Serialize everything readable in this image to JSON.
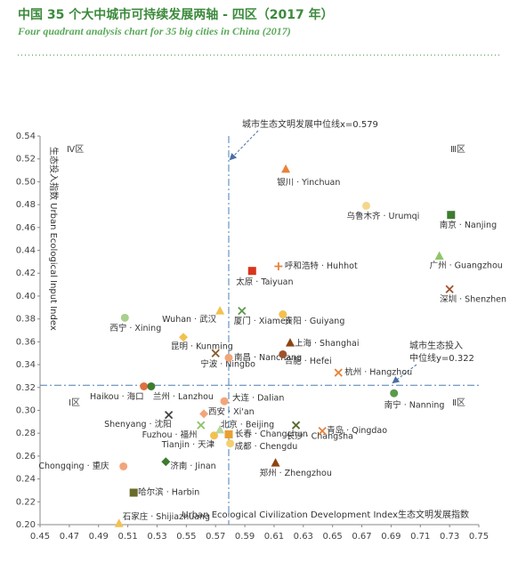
{
  "chart_data": {
    "type": "scatter",
    "title": "中国 35 个大中城市可持续发展两轴 - 四区（2017 年）",
    "subtitle": "Four quadrant analysis chart for 35 big cities in China (2017)",
    "xlabel": "Urban Ecological Civilization Development Index生态文明发展指数",
    "ylabel": "生态投入指数 Urban Ecological Input Index",
    "xlim": [
      0.45,
      0.75
    ],
    "ylim": [
      0.2,
      0.54
    ],
    "xticks": [
      0.45,
      0.47,
      0.49,
      0.51,
      0.53,
      0.55,
      0.57,
      0.59,
      0.61,
      0.63,
      0.65,
      0.67,
      0.69,
      0.71,
      0.73,
      0.75
    ],
    "yticks": [
      {
        "value": 0.2,
        "label": "0.20"
      },
      0.22,
      0.24,
      0.26,
      0.28,
      {
        "value": 0.3,
        "label": "0.30"
      },
      0.32,
      0.34,
      0.36,
      0.38,
      {
        "value": 0.4,
        "label": "0.40"
      },
      0.42,
      0.44,
      0.46,
      0.48,
      {
        "value": 0.5,
        "label": "0.50"
      },
      0.52,
      0.54
    ],
    "x_median": 0.579,
    "y_median": 0.322,
    "x_median_label": "城市生态文明发展中位线x=0.579",
    "y_median_label": [
      "城市生态投入",
      "中位线y=0.322"
    ],
    "quadrant_labels": [
      "Ⅳ区",
      "Ⅲ区",
      "Ⅰ区",
      "Ⅱ区"
    ],
    "points": [
      {
        "label": "银川 · Yinchuan",
        "x": 0.618,
        "y": 0.511,
        "marker": "triangle",
        "color": "#e8833a"
      },
      {
        "label": "乌鲁木齐 · Urumqi",
        "x": 0.673,
        "y": 0.479,
        "marker": "circle",
        "color": "#f5d68a"
      },
      {
        "label": "南京 · Nanjing",
        "x": 0.731,
        "y": 0.471,
        "marker": "square",
        "color": "#3e7b2f"
      },
      {
        "label": "广州 · Guangzhou",
        "x": 0.723,
        "y": 0.435,
        "marker": "triangle",
        "color": "#8fc56a"
      },
      {
        "label": "深圳 · Shenzhen",
        "x": 0.73,
        "y": 0.406,
        "marker": "cross",
        "color": "#a0522d"
      },
      {
        "label": "呼和浩特 · Huhhot",
        "x": 0.613,
        "y": 0.426,
        "marker": "plus",
        "color": "#e8833a"
      },
      {
        "label": "太原 · Taiyuan",
        "x": 0.595,
        "y": 0.422,
        "marker": "square",
        "color": "#d9351c"
      },
      {
        "label": "贵阳 · Guiyang",
        "x": 0.616,
        "y": 0.384,
        "marker": "circle",
        "color": "#f2c14e"
      },
      {
        "label": "厦门 · Xiamen",
        "x": 0.588,
        "y": 0.387,
        "marker": "cross",
        "color": "#5a9a4a"
      },
      {
        "label": "Wuhan · 武汉",
        "x": 0.573,
        "y": 0.387,
        "marker": "triangle",
        "color": "#f2c14e"
      },
      {
        "label": "西宁 · Xining",
        "x": 0.508,
        "y": 0.381,
        "marker": "circle",
        "color": "#a8d08d"
      },
      {
        "label": "昆明 · Kunming",
        "x": 0.548,
        "y": 0.364,
        "marker": "diamond",
        "color": "#f2c14e"
      },
      {
        "label": "上海 · Shanghai",
        "x": 0.621,
        "y": 0.359,
        "marker": "triangle",
        "color": "#8b4513"
      },
      {
        "label": "宁波 · Ningbo",
        "x": 0.57,
        "y": 0.35,
        "marker": "cross",
        "color": "#8b5a2b"
      },
      {
        "label": "南昌 · Nanchang",
        "x": 0.579,
        "y": 0.346,
        "marker": "circle",
        "color": "#f2a57a"
      },
      {
        "label": "合肥 · Hefei",
        "x": 0.616,
        "y": 0.349,
        "marker": "circle",
        "color": "#a0522d"
      },
      {
        "label": "杭州 · Hangzhou",
        "x": 0.654,
        "y": 0.333,
        "marker": "cross",
        "color": "#e8833a"
      },
      {
        "label": "南宁 · Nanning",
        "x": 0.692,
        "y": 0.315,
        "marker": "circle",
        "color": "#5a9a4a"
      },
      {
        "label": "Haikou · 海口",
        "x": 0.521,
        "y": 0.321,
        "marker": "circle",
        "color": "#e07040"
      },
      {
        "label": "兰州 · Lanzhou",
        "x": 0.526,
        "y": 0.321,
        "marker": "circle",
        "color": "#3e7b2f"
      },
      {
        "label": "大连 · Dalian",
        "x": 0.576,
        "y": 0.308,
        "marker": "circle",
        "color": "#f2a57a"
      },
      {
        "label": "西安 · Xi'an",
        "x": 0.562,
        "y": 0.297,
        "marker": "diamond",
        "color": "#f2a57a"
      },
      {
        "label": "Shenyang · 沈阳",
        "x": 0.538,
        "y": 0.296,
        "marker": "cross",
        "color": "#444"
      },
      {
        "label": "北京 · Beijing",
        "x": 0.56,
        "y": 0.287,
        "marker": "cross",
        "color": "#8fc56a"
      },
      {
        "label": "长沙 · Changsha",
        "x": 0.625,
        "y": 0.287,
        "marker": "cross",
        "color": "#556b2f"
      },
      {
        "label": "青岛 · Qingdao",
        "x": 0.643,
        "y": 0.282,
        "marker": "cross",
        "color": "#e8833a"
      },
      {
        "label": "Fuzhou · 福州",
        "x": 0.569,
        "y": 0.278,
        "marker": "circle",
        "color": "#f2c14e"
      },
      {
        "label": "长春 · Changchun",
        "x": 0.579,
        "y": 0.279,
        "marker": "square",
        "color": "#e8a030"
      },
      {
        "label": "Tianjin · 天津",
        "x": 0.573,
        "y": 0.283,
        "marker": "triangle",
        "color": "#b8d8a0"
      },
      {
        "label": "成都 · Chengdu",
        "x": 0.58,
        "y": 0.271,
        "marker": "circle",
        "color": "#f5d070"
      },
      {
        "label": "济南 · Jinan",
        "x": 0.536,
        "y": 0.255,
        "marker": "diamond",
        "color": "#3e7b2f"
      },
      {
        "label": "郑州 · Zhengzhou",
        "x": 0.611,
        "y": 0.254,
        "marker": "triangle",
        "color": "#8b4513"
      },
      {
        "label": "Chongqing · 重庆",
        "x": 0.507,
        "y": 0.251,
        "marker": "circle",
        "color": "#f2a57a"
      },
      {
        "label": "哈尔滨 · Harbin",
        "x": 0.514,
        "y": 0.228,
        "marker": "square",
        "color": "#6b6b2a"
      },
      {
        "label": "石家庄 · Shijiazhuang",
        "x": 0.504,
        "y": 0.201,
        "marker": "triangle",
        "color": "#f2c14e"
      }
    ]
  }
}
